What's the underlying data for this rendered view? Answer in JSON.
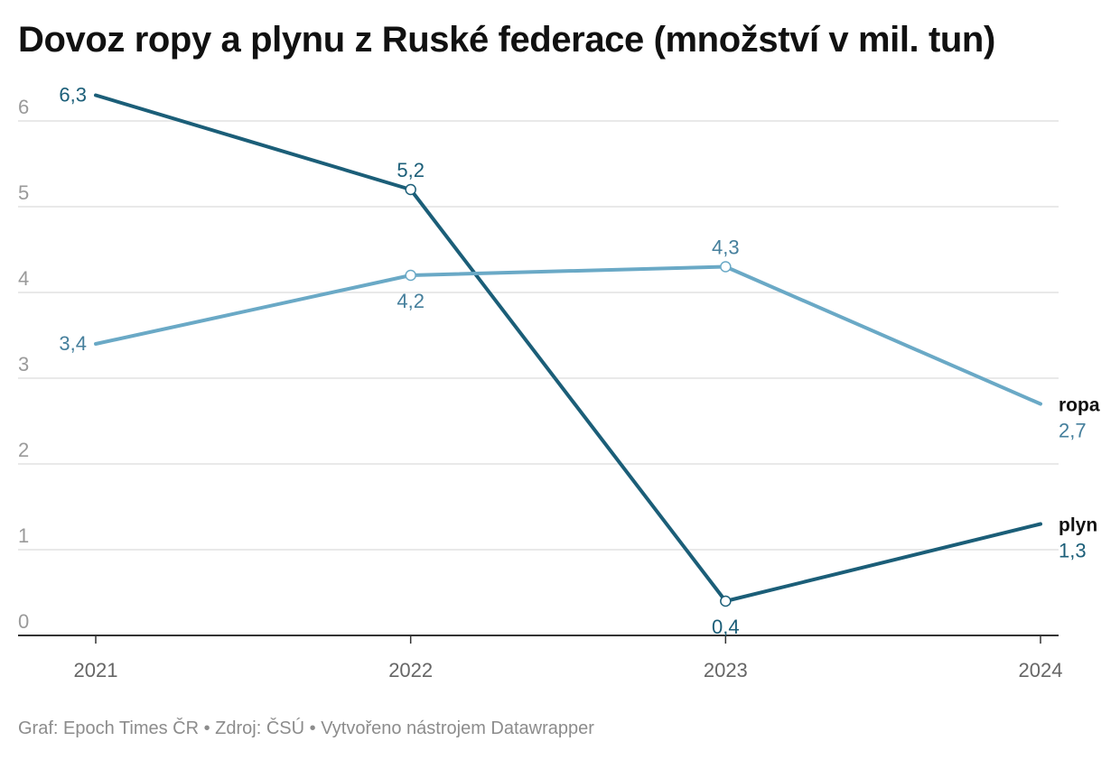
{
  "chart_data": {
    "type": "line",
    "title": "Dovoz ropy a plynu z Ruské federace (množství v mil. tun)",
    "footer": "Graf: Epoch Times ČR • Zdroj: ČSÚ • Vytvořeno nástrojem Datawrapper",
    "x": [
      "2021",
      "2022",
      "2023",
      "2024"
    ],
    "ylim": [
      0,
      6
    ],
    "y_ticks": [
      {
        "value": 0,
        "label": "0"
      },
      {
        "value": 1,
        "label": "1"
      },
      {
        "value": 2,
        "label": "2"
      },
      {
        "value": 3,
        "label": "3"
      },
      {
        "value": 4,
        "label": "4"
      },
      {
        "value": 5,
        "label": "5"
      },
      {
        "value": 6,
        "label": "6"
      }
    ],
    "grid": true,
    "series": [
      {
        "name": "plyn",
        "color": "#1b5e78",
        "values": [
          6.3,
          5.2,
          0.4,
          1.3
        ],
        "labels": [
          "6,3",
          "5,2",
          "0,4",
          "1,3"
        ],
        "label_positions": [
          "left",
          "above",
          "below",
          "end"
        ]
      },
      {
        "name": "ropa",
        "color": "#6aa9c6",
        "label_color": "#457f9c",
        "values": [
          3.4,
          4.2,
          4.3,
          2.7
        ],
        "labels": [
          "3,4",
          "4,2",
          "4,3",
          "2,7"
        ],
        "label_positions": [
          "left",
          "below",
          "above",
          "end"
        ]
      }
    ],
    "markers_on": [
      1,
      2
    ]
  }
}
